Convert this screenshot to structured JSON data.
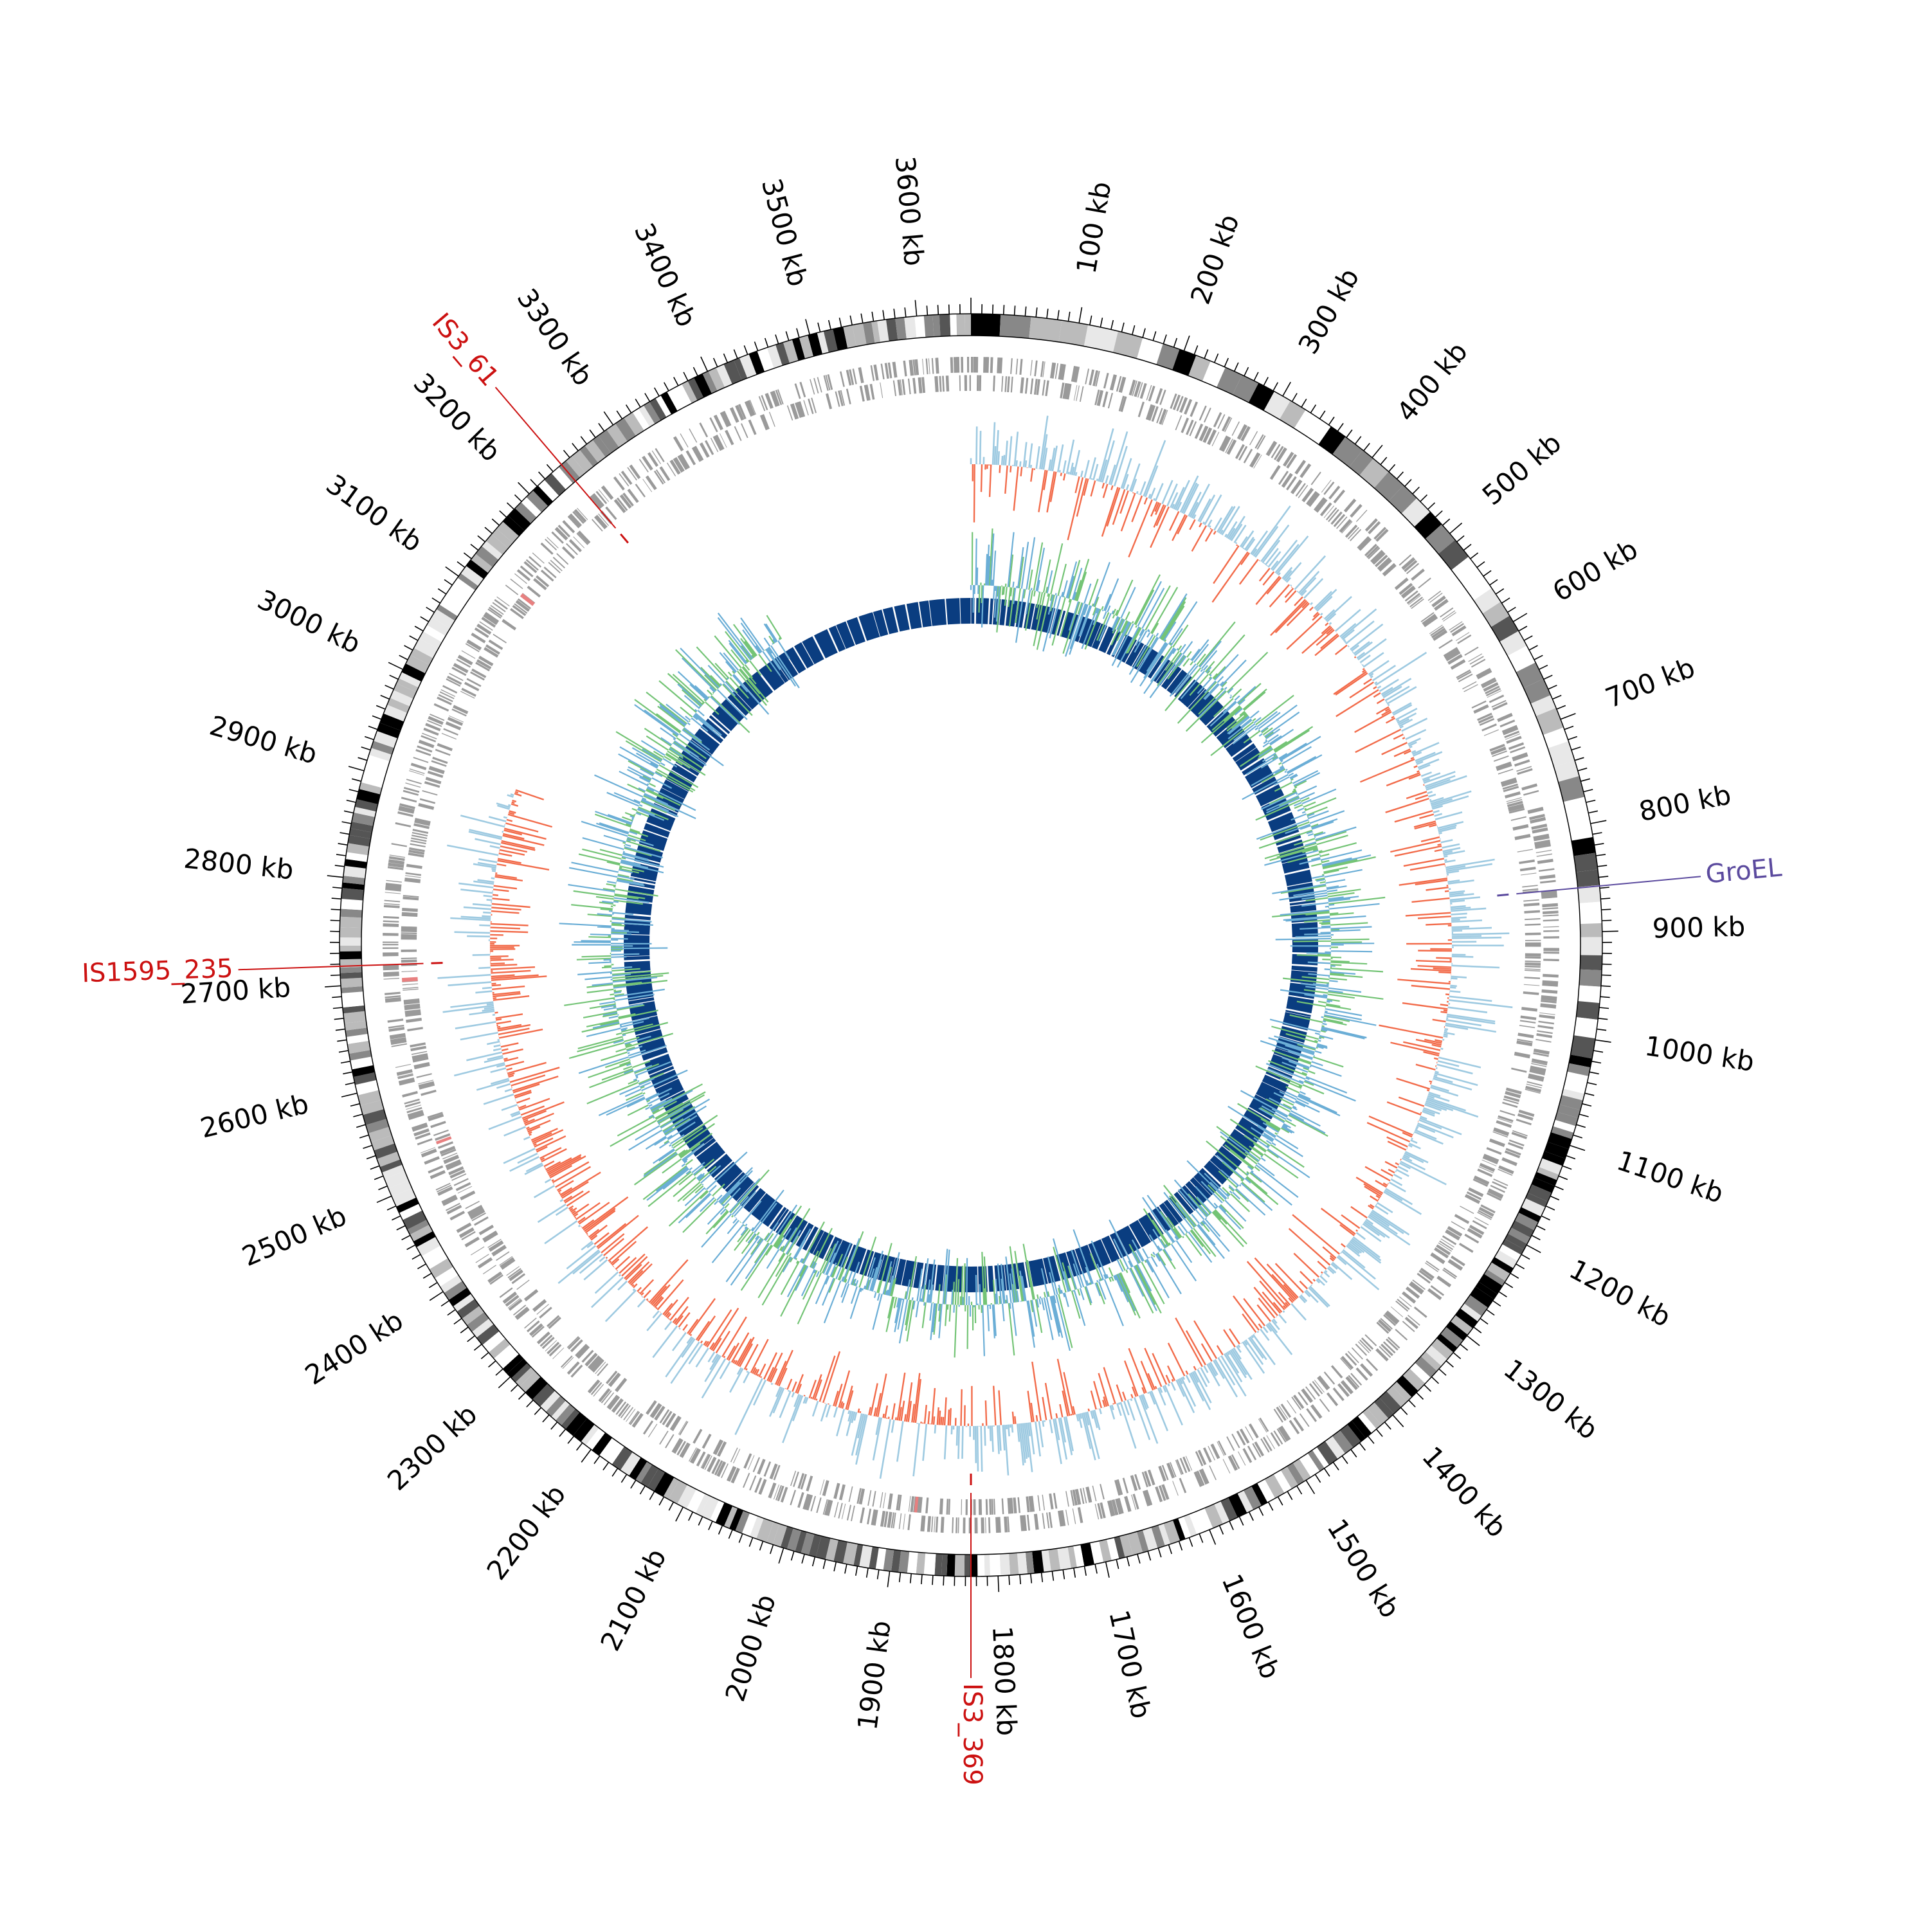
{
  "chart_data": {
    "type": "circular-genome-map",
    "genome_size_kb": 3650,
    "tick_labels": [
      "100 kb",
      "200 kb",
      "300 kb",
      "400 kb",
      "500 kb",
      "600 kb",
      "700 kb",
      "800 kb",
      "900 kb",
      "1000 kb",
      "1100 kb",
      "1200 kb",
      "1300 kb",
      "1400 kb",
      "1500 kb",
      "1600 kb",
      "1700 kb",
      "1800 kb",
      "1900 kb",
      "2000 kb",
      "2100 kb",
      "2200 kb",
      "2300 kb",
      "2400 kb",
      "2500 kb",
      "2600 kb",
      "2700 kb",
      "2800 kb",
      "2900 kb",
      "3000 kb",
      "3100 kb",
      "3200 kb",
      "3300 kb",
      "3400 kb",
      "3500 kb",
      "3600 kb"
    ],
    "tick_positions_kb": [
      100,
      200,
      300,
      400,
      500,
      600,
      700,
      800,
      900,
      1000,
      1100,
      1200,
      1300,
      1400,
      1500,
      1600,
      1700,
      1800,
      1900,
      2000,
      2100,
      2200,
      2300,
      2400,
      2500,
      2600,
      2700,
      2800,
      2900,
      3000,
      3100,
      3200,
      3300,
      3400,
      3500,
      3600
    ],
    "annotations": [
      {
        "label": "GroEL",
        "position_kb": 858,
        "color": "#5b4a9e"
      },
      {
        "label": "IS3_61",
        "position_kb": 3240,
        "color": "#cc1111"
      },
      {
        "label": "IS1595_235",
        "position_kb": 2718,
        "color": "#cc1111"
      },
      {
        "label": "IS3_369",
        "position_kb": 1825,
        "color": "#cc1111"
      }
    ],
    "tracks": [
      {
        "name": "karyotype",
        "type": "ideogram",
        "colors": [
          "#ffffff",
          "#e8e8e8",
          "#bbbbbb",
          "#888888",
          "#555555",
          "#000000"
        ]
      },
      {
        "name": "genes",
        "type": "tiles",
        "color": "#9a9a9a"
      },
      {
        "name": "gc-skew",
        "type": "histogram",
        "positive_color": "#9ecae1",
        "negative_color": "#f26b4a",
        "range_kb": [
          0,
          2930
        ]
      },
      {
        "name": "gc-content",
        "type": "histogram",
        "colors": [
          "#6baed6",
          "#74c476"
        ],
        "range_kb": [
          0,
          3330
        ]
      },
      {
        "name": "coverage",
        "type": "heatmap",
        "color": "#0a3d80"
      }
    ]
  }
}
